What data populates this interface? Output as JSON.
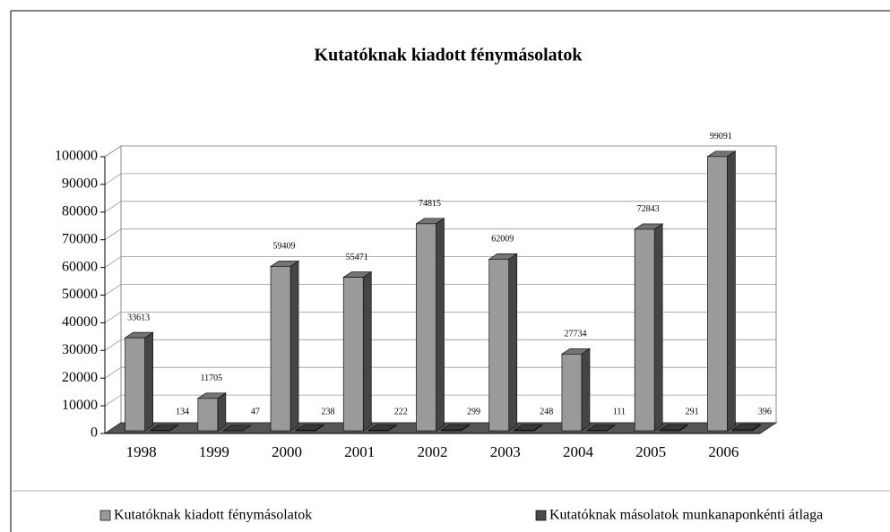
{
  "chart_data": {
    "type": "bar3d",
    "title": "Kutatóknak kiadott fénymásolatok",
    "categories": [
      "1998",
      "1999",
      "2000",
      "2001",
      "2002",
      "2003",
      "2004",
      "2005",
      "2006"
    ],
    "series": [
      {
        "name": "Kutatóknak kiadott fénymásolatok",
        "color": "#9a9a9a",
        "values": [
          33613,
          11705,
          59409,
          55471,
          74815,
          62009,
          27734,
          72843,
          99091
        ]
      },
      {
        "name": "Kutatóknak másolatok munkanaponkénti átlaga",
        "color": "#4a4a4a",
        "values": [
          134,
          47,
          238,
          222,
          299,
          248,
          111,
          291,
          396
        ]
      }
    ],
    "ylim": [
      0,
      100000
    ],
    "yticks": [
      0,
      10000,
      20000,
      30000,
      40000,
      50000,
      60000,
      70000,
      80000,
      90000,
      100000
    ],
    "grid": true,
    "legend": "bottom"
  }
}
